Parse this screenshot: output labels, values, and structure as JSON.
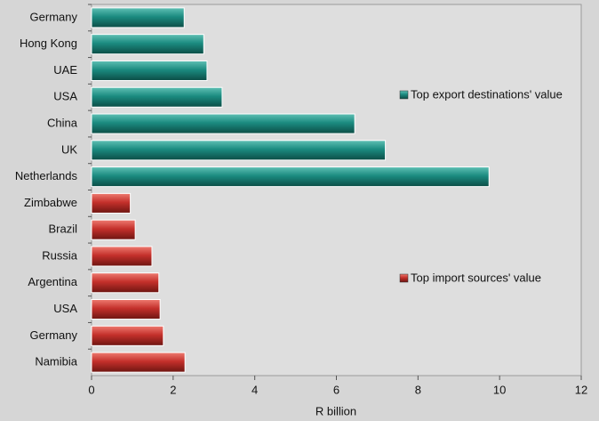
{
  "chart_data": {
    "type": "bar",
    "orientation": "horizontal",
    "categories": [
      "Germany",
      "Hong Kong",
      "UAE",
      "USA",
      "China",
      "UK",
      "Netherlands",
      "Zimbabwe",
      "Brazil",
      "Russia",
      "Argentina",
      "USA",
      "Germany",
      "Namibia"
    ],
    "series": [
      {
        "name": "Top export destinations' value",
        "color": "#1b8b80",
        "values": [
          2.27,
          2.75,
          2.83,
          3.2,
          6.45,
          7.2,
          9.74,
          null,
          null,
          null,
          null,
          null,
          null,
          null
        ]
      },
      {
        "name": "Top import sources' value",
        "color": "#c4302b",
        "values": [
          null,
          null,
          null,
          null,
          null,
          null,
          null,
          0.95,
          1.07,
          1.48,
          1.65,
          1.68,
          1.76,
          2.29
        ]
      }
    ],
    "xlim": [
      0,
      12
    ],
    "xticks": [
      0,
      2,
      4,
      6,
      8,
      10,
      12
    ],
    "xlabel": "R billion"
  }
}
